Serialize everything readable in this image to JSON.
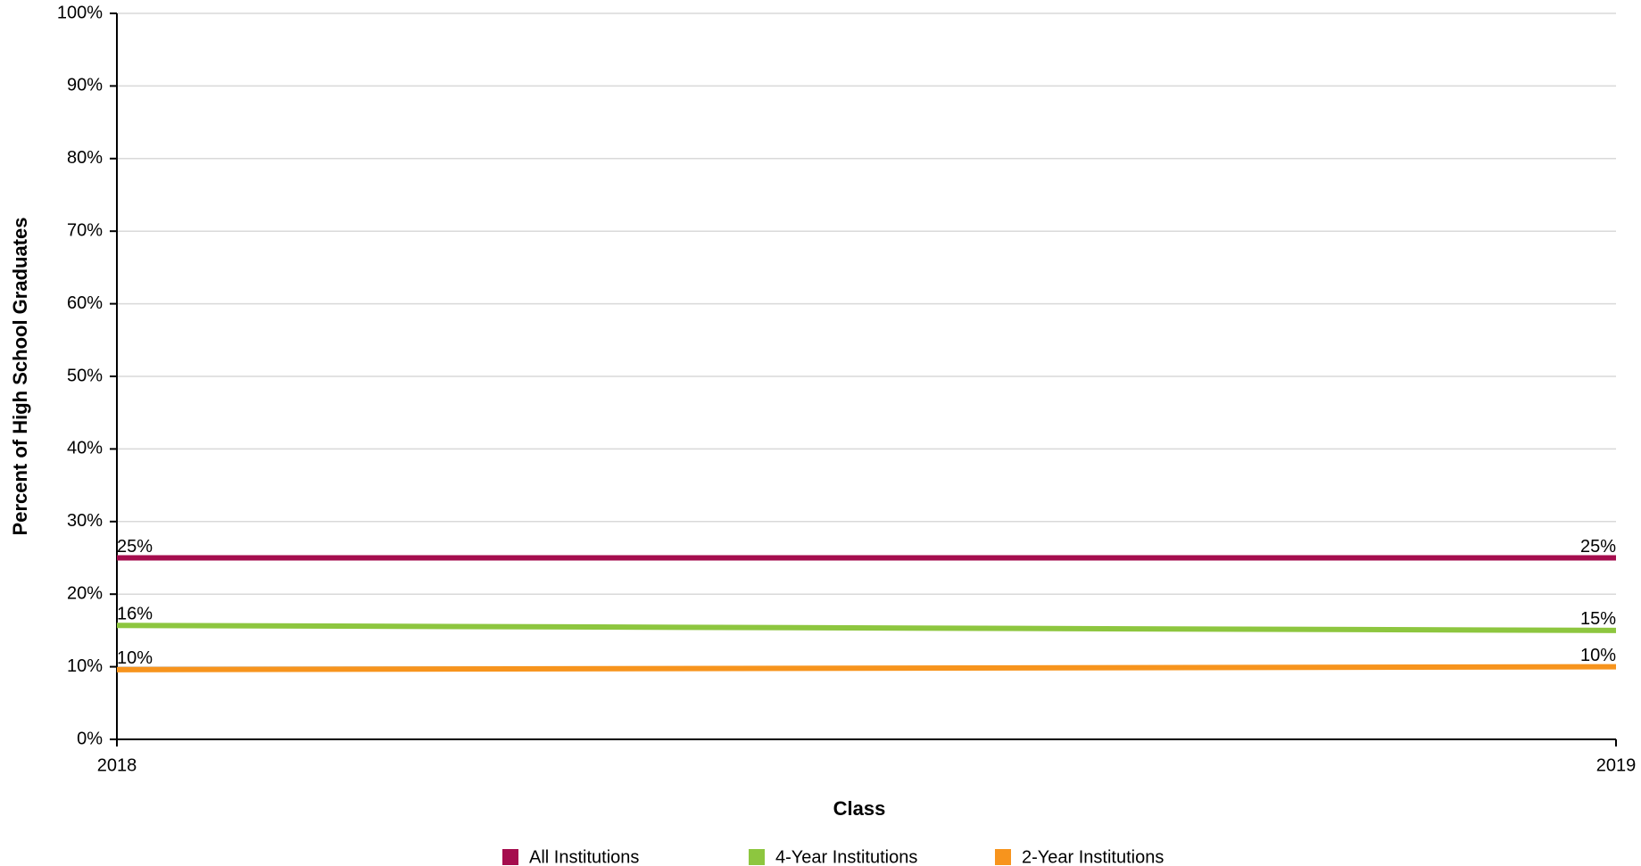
{
  "chart_data": {
    "type": "line",
    "xlabel": "Class",
    "ylabel": "Percent of High School Graduates",
    "categories": [
      "2018",
      "2019"
    ],
    "series": [
      {
        "name": "All Institutions",
        "color": "#a50d4e",
        "values": [
          25,
          25
        ],
        "value_labels": [
          "25%",
          "25%"
        ]
      },
      {
        "name": "4-Year Institutions",
        "color": "#8dc63f",
        "values": [
          15.7,
          15.0
        ],
        "value_labels": [
          "16%",
          "15%"
        ]
      },
      {
        "name": "2-Year Institutions",
        "color": "#f7941d",
        "values": [
          9.6,
          10
        ],
        "value_labels": [
          "10%",
          "10%"
        ]
      }
    ],
    "ylim": [
      0,
      100
    ],
    "yticks": [
      {
        "value": 0,
        "label": "0%"
      },
      {
        "value": 10,
        "label": "10%"
      },
      {
        "value": 20,
        "label": "20%"
      },
      {
        "value": 30,
        "label": "30%"
      },
      {
        "value": 40,
        "label": "40%"
      },
      {
        "value": 50,
        "label": "50%"
      },
      {
        "value": 60,
        "label": "60%"
      },
      {
        "value": 70,
        "label": "70%"
      },
      {
        "value": 80,
        "label": "80%"
      },
      {
        "value": 90,
        "label": "90%"
      },
      {
        "value": 100,
        "label": "100%"
      }
    ],
    "grid": true
  }
}
